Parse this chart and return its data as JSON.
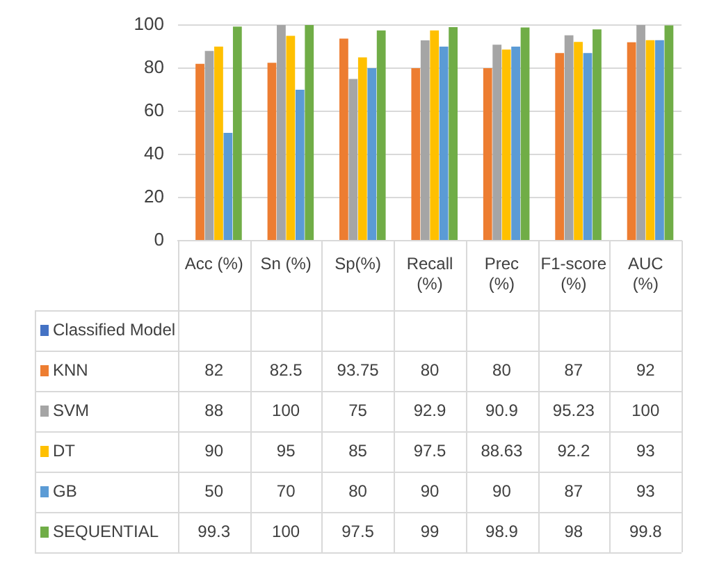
{
  "chart_data": {
    "type": "bar",
    "categories": [
      "Acc (%)",
      "Sn (%)",
      "Sp(%)",
      "Recall (%)",
      "Prec (%)",
      "F1-score (%)",
      "AUC (%)"
    ],
    "series": [
      {
        "name": "Classified Model",
        "color": "#4472c4",
        "values": [
          null,
          null,
          null,
          null,
          null,
          null,
          null
        ]
      },
      {
        "name": "KNN",
        "color": "#ed7d31",
        "values": [
          82,
          82.5,
          93.75,
          80,
          80,
          87,
          92
        ]
      },
      {
        "name": "SVM",
        "color": "#a5a5a5",
        "values": [
          88,
          100,
          75,
          92.9,
          90.9,
          95.23,
          100
        ]
      },
      {
        "name": "DT",
        "color": "#ffc000",
        "values": [
          90,
          95,
          85,
          97.5,
          88.63,
          92.2,
          93
        ]
      },
      {
        "name": "GB",
        "color": "#5b9bd5",
        "values": [
          50,
          70,
          80,
          90,
          90,
          87,
          93
        ]
      },
      {
        "name": "SEQUENTIAL",
        "color": "#70ad47",
        "values": [
          99.3,
          100,
          97.5,
          99,
          98.9,
          98,
          99.8
        ]
      }
    ],
    "ylim": [
      0,
      100
    ],
    "yticks": [
      0,
      20,
      40,
      60,
      80,
      100
    ],
    "grid": "y",
    "legend": "bottom",
    "data_labels": true
  }
}
